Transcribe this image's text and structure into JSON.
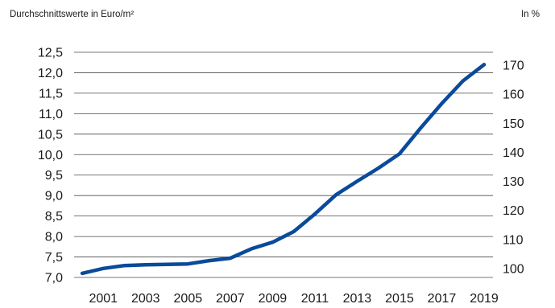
{
  "chart_data": {
    "type": "line",
    "left_axis_title": "Durchschnittswerte in Euro/m²",
    "right_axis_title": "In %",
    "x": [
      2000,
      2001,
      2002,
      2003,
      2004,
      2005,
      2006,
      2007,
      2008,
      2009,
      2010,
      2011,
      2012,
      2013,
      2014,
      2015,
      2016,
      2017,
      2018,
      2019
    ],
    "x_tick_labels": [
      "2001",
      "2003",
      "2005",
      "2007",
      "2009",
      "2011",
      "2013",
      "2015",
      "2017",
      "2019"
    ],
    "series": [
      {
        "values": [
          7.1,
          7.22,
          7.29,
          7.31,
          7.32,
          7.33,
          7.41,
          7.47,
          7.7,
          7.86,
          8.12,
          8.55,
          9.02,
          9.35,
          9.67,
          10.02,
          10.65,
          11.25,
          11.8,
          12.2
        ],
        "color": "#0a4a9a"
      }
    ],
    "y_left": {
      "min": 7.0,
      "max": 12.5,
      "ticks": [
        "7,0",
        "7,5",
        "8,0",
        "8,5",
        "9,0",
        "9,5",
        "10,0",
        "10,5",
        "11,0",
        "11,5",
        "12,0",
        "12,5"
      ]
    },
    "y_right": {
      "min": 100,
      "max": 170,
      "ticks": [
        "100",
        "110",
        "120",
        "130",
        "140",
        "150",
        "160",
        "170"
      ]
    },
    "grid": "horizontal",
    "legend": "none"
  }
}
